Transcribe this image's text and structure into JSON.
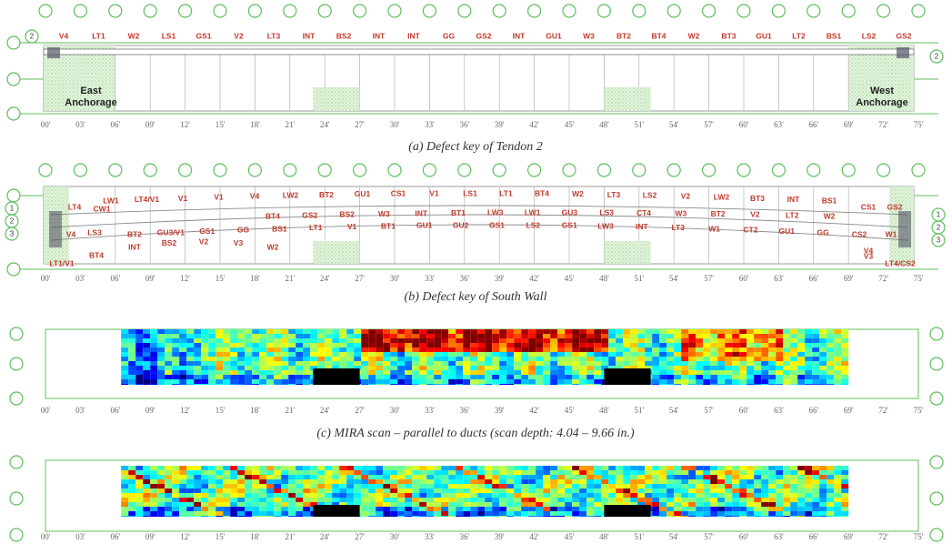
{
  "axis_ticks": [
    "00'",
    "03'",
    "06'",
    "09'",
    "12'",
    "15'",
    "18'",
    "21'",
    "24'",
    "27'",
    "30'",
    "33'",
    "36'",
    "39'",
    "42'",
    "45'",
    "48'",
    "51'",
    "54'",
    "57'",
    "60'",
    "63'",
    "66'",
    "69'",
    "72'",
    "75'"
  ],
  "panel_a": {
    "caption": "(a) Defect key of Tendon 2",
    "tendon_number": "2",
    "defects": [
      "V4",
      "LT1",
      "W2",
      "LS1",
      "GS1",
      "V2",
      "LT3",
      "INT",
      "BS2",
      "INT",
      "INT",
      "GG",
      "GS2",
      "INT",
      "GU1",
      "W3",
      "BT2",
      "BT4",
      "W2",
      "BT3",
      "GU1",
      "LT2",
      "BS1",
      "LS2",
      "GS2"
    ],
    "east_anchorage": [
      "East",
      "Anchorage"
    ],
    "west_anchorage": [
      "West",
      "Anchorage"
    ]
  },
  "panel_b": {
    "caption": "(b) Defect key of South Wall",
    "duct_numbers": [
      "1",
      "2",
      "3"
    ],
    "row_1": [
      "LW1",
      "LT4/V1",
      "V1",
      "V1",
      "V4",
      "LW2",
      "BT2",
      "GU1",
      "CS1",
      "V1",
      "LS1",
      "LT1",
      "BT4",
      "W2",
      "LT3",
      "LS2",
      "V2",
      "LW2",
      "BT3",
      "INT",
      "BS1"
    ],
    "row_2": [
      "BT4",
      "GS2",
      "BS2",
      "W3",
      "INT",
      "BT1",
      "LW3",
      "LW1",
      "GU3",
      "LS3",
      "CT4",
      "W3",
      "BT2",
      "V2",
      "LT2",
      "W2"
    ],
    "row_3": [
      "BT2",
      "GU3/V1",
      "GS1",
      "GG",
      "BS1",
      "LT1",
      "V1",
      "BT1",
      "GU1",
      "GU2",
      "GS1",
      "LS2",
      "GS1",
      "LW3",
      "INT",
      "LT3",
      "W1",
      "CT2",
      "GU1",
      "GG",
      "CS2"
    ],
    "row_4": [
      "INT",
      "BS2",
      "V2",
      "V3",
      "W2"
    ],
    "left_end": [
      "LT4",
      "CW1",
      "LS3",
      "V4",
      "BT4",
      "LT1/V1"
    ],
    "right_end": [
      "CS1",
      "GS2",
      "V3",
      "W1",
      "V4",
      "LT4/CS2"
    ]
  },
  "panel_c": {
    "caption": "(c) MIRA scan – parallel to ducts (scan depth: 4.04 – 9.66 in.)"
  }
}
